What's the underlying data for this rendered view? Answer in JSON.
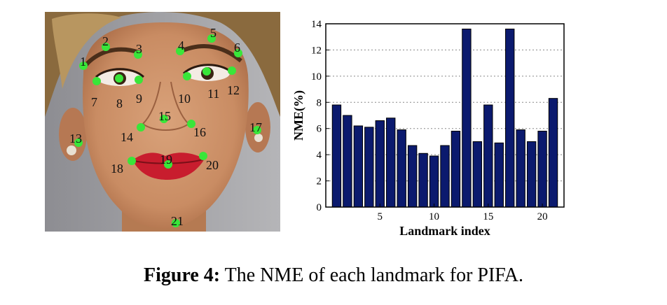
{
  "figure": {
    "caption_label": "Figure 4:",
    "caption_text": "The NME of each landmark for PIFA."
  },
  "face": {
    "landmark_color": "#39e639",
    "landmarks": [
      "1",
      "2",
      "3",
      "4",
      "5",
      "6",
      "7",
      "8",
      "9",
      "10",
      "11",
      "12",
      "13",
      "14",
      "15",
      "16",
      "17",
      "18",
      "19",
      "20",
      "21"
    ]
  },
  "chart_data": {
    "type": "bar",
    "x": [
      1,
      2,
      3,
      4,
      5,
      6,
      7,
      8,
      9,
      10,
      11,
      12,
      13,
      14,
      15,
      16,
      17,
      18,
      19,
      20,
      21
    ],
    "values": [
      7.8,
      7.0,
      6.2,
      6.1,
      6.6,
      6.8,
      5.9,
      4.7,
      4.1,
      3.9,
      4.7,
      5.8,
      13.6,
      5.0,
      7.8,
      4.9,
      13.6,
      5.9,
      5.0,
      5.8,
      8.3
    ],
    "xlabel": "Landmark index",
    "ylabel": "NME(%)",
    "xlim": [
      0,
      22
    ],
    "ylim": [
      0,
      14
    ],
    "xticks": [
      5,
      10,
      15,
      20
    ],
    "yticks": [
      0,
      2,
      4,
      6,
      8,
      10,
      12,
      14
    ],
    "bar_color": "#0b1a6e",
    "grid": "horizontal dotted"
  }
}
